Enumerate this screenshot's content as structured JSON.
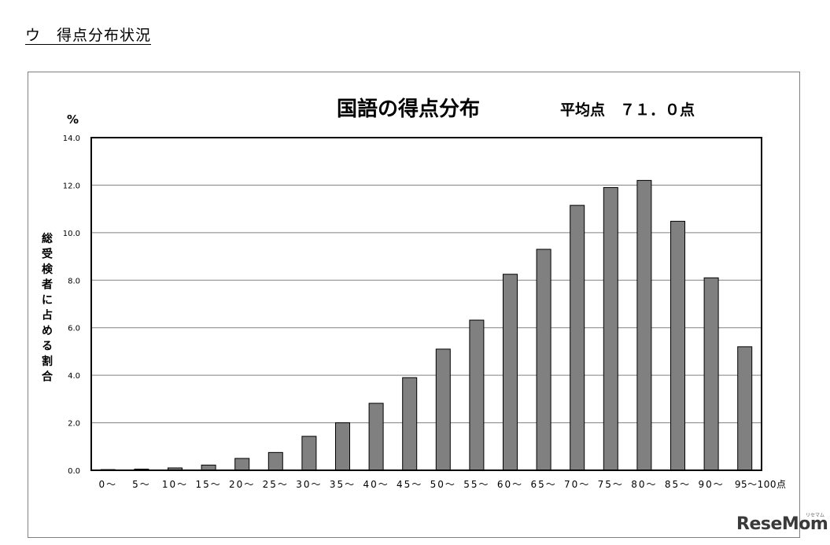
{
  "heading": "ウ　得点分布状況",
  "watermark": "ReseMom",
  "watermark_sub": "リセマム",
  "chart_data": {
    "type": "bar",
    "title": "国語の得点分布",
    "subtitle": "平均点　７１．０点",
    "unit_label": "%",
    "ylabel": "総受検者に占める割合",
    "xlabel": "",
    "ylim": [
      0,
      14
    ],
    "yticks": [
      "0.0",
      "2.0",
      "4.0",
      "6.0",
      "8.0",
      "10.0",
      "12.0",
      "14.0"
    ],
    "categories": [
      "0〜",
      "5〜",
      "10〜",
      "15〜",
      "20〜",
      "25〜",
      "30〜",
      "35〜",
      "40〜",
      "45〜",
      "50〜",
      "55〜",
      "60〜",
      "65〜",
      "70〜",
      "75〜",
      "80〜",
      "85〜",
      "90〜",
      "95〜100点"
    ],
    "values": [
      0.03,
      0.05,
      0.1,
      0.22,
      0.5,
      0.75,
      1.43,
      2.0,
      2.82,
      3.9,
      5.1,
      6.32,
      8.25,
      9.3,
      11.15,
      11.9,
      12.2,
      10.48,
      8.1,
      5.2
    ],
    "bar_color": "#808080",
    "grid": true,
    "legend": "none"
  }
}
